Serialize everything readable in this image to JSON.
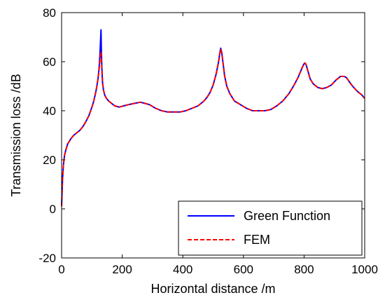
{
  "chart_data": {
    "type": "line",
    "title": "",
    "xlabel": "Horizontal distance /m",
    "ylabel": "Transmission loss /dB",
    "xlim": [
      0,
      1000
    ],
    "ylim": [
      -20,
      80
    ],
    "xticks": [
      0,
      200,
      400,
      600,
      800,
      1000
    ],
    "yticks": [
      -20,
      0,
      20,
      40,
      60,
      80
    ],
    "grid": false,
    "legend_position": "bottom-right",
    "series": [
      {
        "name": "Green Function",
        "color": "#0000ff",
        "style": "solid",
        "x": [
          0,
          3,
          6,
          10,
          15,
          20,
          30,
          40,
          50,
          60,
          70,
          80,
          90,
          100,
          105,
          110,
          115,
          120,
          123,
          126,
          128,
          130,
          131,
          133,
          135,
          138,
          142,
          148,
          155,
          165,
          175,
          190,
          205,
          220,
          240,
          260,
          275,
          290,
          310,
          330,
          350,
          370,
          390,
          410,
          430,
          450,
          470,
          480,
          490,
          500,
          510,
          518,
          522,
          525,
          528,
          532,
          538,
          545,
          555,
          570,
          590,
          610,
          630,
          650,
          670,
          690,
          710,
          730,
          750,
          765,
          780,
          790,
          797,
          802,
          806,
          812,
          820,
          830,
          845,
          860,
          875,
          890,
          905,
          920,
          932,
          940,
          948,
          960,
          975,
          990,
          1000
        ],
        "values": [
          1,
          12,
          18,
          22,
          24.5,
          26.5,
          28.5,
          30,
          31,
          32,
          33.5,
          35.5,
          38,
          41.5,
          43.5,
          46,
          49,
          53,
          56.5,
          62,
          67,
          73,
          66,
          57,
          51.5,
          48.5,
          46.5,
          45,
          44,
          43,
          42,
          41.5,
          42,
          42.5,
          43,
          43.5,
          43,
          42.5,
          41,
          40,
          39.5,
          39.5,
          39.5,
          40,
          41,
          42,
          44,
          45.5,
          47.5,
          50.5,
          55,
          60,
          63.5,
          65.5,
          64,
          60,
          54,
          50,
          47,
          44,
          42.5,
          41,
          40,
          40,
          40,
          40.5,
          42,
          44,
          47,
          50,
          53.5,
          56.5,
          58.5,
          59.5,
          59,
          56.5,
          53,
          51,
          49.5,
          49,
          49.5,
          50.5,
          52.5,
          54,
          54,
          53.5,
          52,
          50,
          48,
          46.5,
          45
        ]
      },
      {
        "name": "FEM",
        "color": "#ff0000",
        "style": "dashed",
        "x": [
          0,
          3,
          6,
          10,
          15,
          20,
          30,
          40,
          50,
          60,
          70,
          80,
          90,
          100,
          105,
          110,
          115,
          120,
          123,
          126,
          128,
          130,
          131,
          133,
          135,
          138,
          142,
          148,
          155,
          165,
          175,
          190,
          205,
          220,
          240,
          260,
          275,
          290,
          310,
          330,
          350,
          370,
          390,
          410,
          430,
          450,
          470,
          480,
          490,
          500,
          510,
          518,
          522,
          525,
          528,
          532,
          538,
          545,
          555,
          570,
          590,
          610,
          630,
          650,
          670,
          690,
          710,
          730,
          750,
          765,
          780,
          790,
          797,
          802,
          806,
          812,
          820,
          830,
          845,
          860,
          875,
          890,
          905,
          920,
          932,
          940,
          948,
          960,
          975,
          990,
          1000
        ],
        "values": [
          1,
          12,
          18,
          22,
          24.5,
          26.5,
          28.5,
          30,
          31,
          32,
          33.5,
          35.5,
          38,
          41.5,
          43.5,
          46,
          49,
          53,
          56,
          60,
          62.5,
          64,
          62,
          56,
          51.5,
          48.5,
          46.5,
          45,
          44,
          43,
          42,
          41.5,
          42,
          42.5,
          43,
          43.5,
          43,
          42.5,
          41,
          40,
          39.5,
          39.5,
          39.5,
          40,
          41,
          42,
          44,
          45.5,
          47.5,
          50.5,
          55,
          60,
          63.5,
          65,
          64,
          60,
          54,
          50,
          47,
          44,
          42.5,
          41,
          40,
          40,
          40,
          40.5,
          42,
          44,
          47,
          50,
          53.5,
          56.5,
          58.5,
          59.5,
          59,
          56.5,
          53,
          51,
          49.5,
          49,
          49.5,
          50.5,
          52.5,
          54,
          54,
          53.5,
          52,
          50,
          48,
          46.5,
          45
        ]
      }
    ]
  }
}
